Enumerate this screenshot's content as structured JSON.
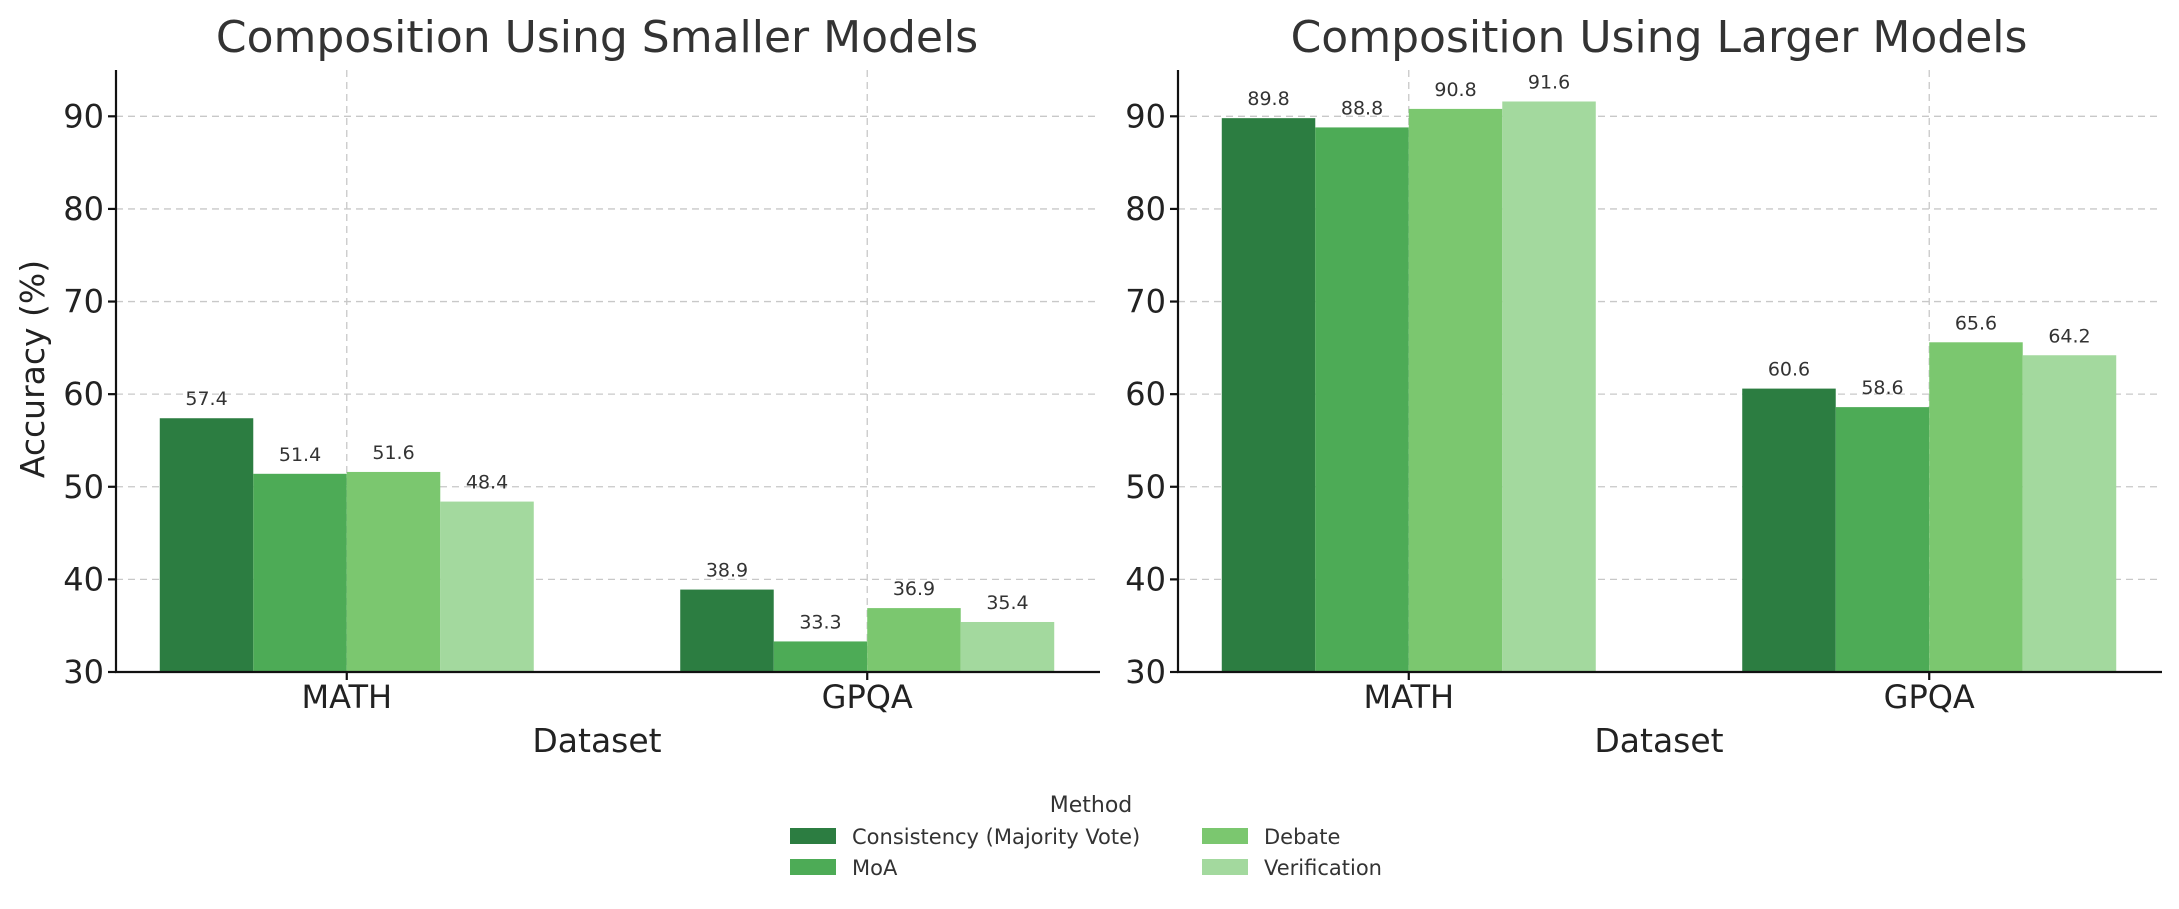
{
  "chart_data": [
    {
      "type": "bar",
      "title": "Composition Using Smaller Models",
      "xlabel": "Dataset",
      "ylabel": "Accuracy (%)",
      "categories": [
        "MATH",
        "GPQA"
      ],
      "ylim": [
        30,
        95
      ],
      "yticks": [
        30,
        40,
        50,
        60,
        70,
        80,
        90
      ],
      "grid": true,
      "series": [
        {
          "name": "Consistency (Majority Vote)",
          "values": [
            57.4,
            38.9
          ]
        },
        {
          "name": "MoA",
          "values": [
            51.4,
            33.3
          ]
        },
        {
          "name": "Debate",
          "values": [
            51.6,
            36.9
          ]
        },
        {
          "name": "Verification",
          "values": [
            48.4,
            35.4
          ]
        }
      ]
    },
    {
      "type": "bar",
      "title": "Composition Using Larger Models",
      "xlabel": "Dataset",
      "ylabel": "",
      "categories": [
        "MATH",
        "GPQA"
      ],
      "ylim": [
        30,
        95
      ],
      "yticks": [
        30,
        40,
        50,
        60,
        70,
        80,
        90
      ],
      "grid": true,
      "series": [
        {
          "name": "Consistency (Majority Vote)",
          "values": [
            89.8,
            60.6
          ]
        },
        {
          "name": "MoA",
          "values": [
            88.8,
            58.6
          ]
        },
        {
          "name": "Debate",
          "values": [
            90.8,
            65.6
          ]
        },
        {
          "name": "Verification",
          "values": [
            91.6,
            64.2
          ]
        }
      ]
    }
  ],
  "legend": {
    "title": "Method",
    "placement": "bottom-center",
    "entries": [
      "Consistency (Majority Vote)",
      "MoA",
      "Debate",
      "Verification"
    ]
  },
  "colors": {
    "Consistency (Majority Vote)": "#2c7d41",
    "MoA": "#4dab56",
    "Debate": "#7bc76f",
    "Verification": "#a3d99e"
  }
}
